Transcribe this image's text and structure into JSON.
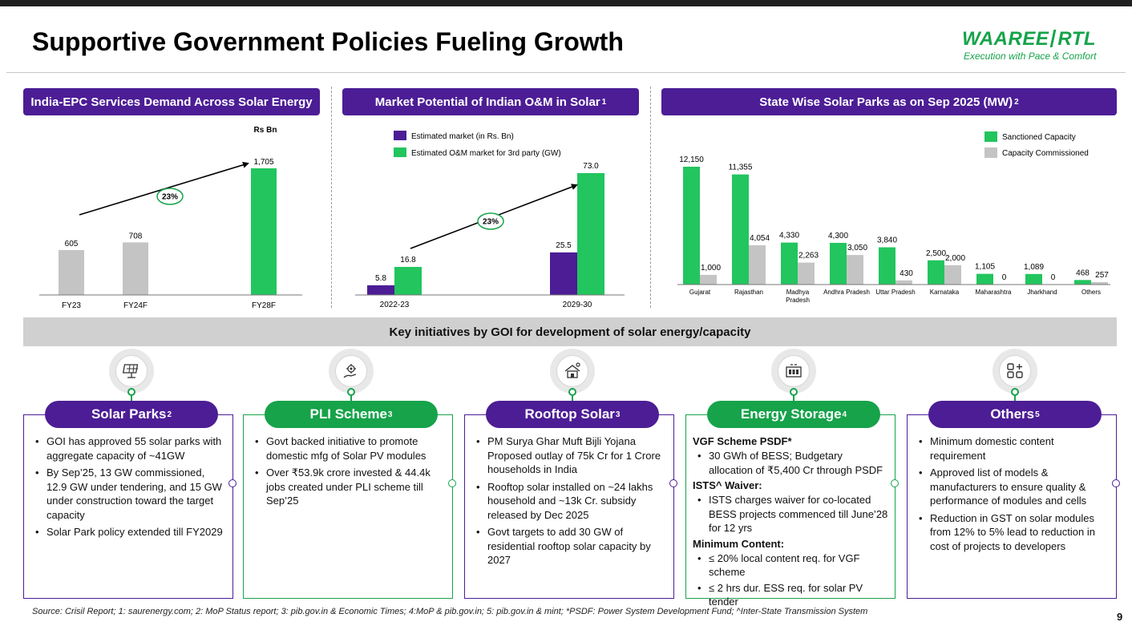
{
  "page": {
    "title": "Supportive Government Policies Fueling Growth",
    "logo_brand": "WAAREE",
    "logo_sub": "RTL",
    "logo_tagline": "Execution with Pace & Comfort",
    "page_number": "9",
    "banner": "Key initiatives by GOI for development of solar energy/capacity",
    "footer": "Source: Crisil Report; 1: saurenergy.com; 2: MoP Status report; 3: pib.gov.in & Economic Times; 4:MoP & pib.gov.in; 5: pib.gov.in & mint; *PSDF: Power System Development Fund; ^Inter-State Transmission System"
  },
  "colors": {
    "purple": "#4c1d95",
    "green": "#16a34a",
    "bar_green": "#22c55e",
    "bar_grey": "#c4c4c4"
  },
  "chart_data": [
    {
      "id": "epc",
      "type": "bar",
      "title": "India-EPC Services Demand Across Solar Energy",
      "unit_label": "Rs Bn",
      "categories": [
        "FY23",
        "FY24F",
        "FY28F"
      ],
      "values": [
        605,
        708,
        1705
      ],
      "value_labels": [
        "605",
        "708",
        "1,705"
      ],
      "bar_colors": [
        "grey",
        "grey",
        "green"
      ],
      "cagr_label": "23%",
      "ylim": [
        0,
        1705
      ]
    },
    {
      "id": "om",
      "type": "bar",
      "title": "Market Potential of Indian O&M in Solar",
      "title_sup": "1",
      "categories": [
        "2022-23",
        "2029-30"
      ],
      "series": [
        {
          "name": "Estimated market (in Rs. Bn)",
          "color": "purple",
          "values": [
            5.8,
            25.5
          ],
          "labels": [
            "5.8",
            "25.5"
          ]
        },
        {
          "name": "Estimated O&M market for 3rd party (GW)",
          "color": "green",
          "values": [
            16.8,
            73.0
          ],
          "labels": [
            "16.8",
            "73.0"
          ]
        }
      ],
      "cagr_label": "23%",
      "ylim": [
        0,
        73
      ]
    },
    {
      "id": "parks",
      "type": "bar",
      "title": "State Wise Solar Parks as on Sep 2025 (MW)",
      "title_sup": "2",
      "categories": [
        "Gujarat",
        "Rajasthan",
        "Madhya Pradesh",
        "Andhra Pradesh",
        "Uttar Pradesh",
        "Karnataka",
        "Maharashtra",
        "Jharkhand",
        "Others"
      ],
      "series": [
        {
          "name": "Sanctioned Capacity",
          "color": "green",
          "values": [
            12150,
            11355,
            4330,
            4300,
            3840,
            2500,
            1105,
            1089,
            468
          ],
          "labels": [
            "12,150",
            "11,355",
            "4,330",
            "4,300",
            "3,840",
            "2,500",
            "1,105",
            "1,089",
            "468"
          ]
        },
        {
          "name": "Capacity Commissioned",
          "color": "grey",
          "values": [
            1000,
            4054,
            2263,
            3050,
            430,
            2000,
            0,
            0,
            257
          ],
          "labels": [
            "1,000",
            "4,054",
            "2,263",
            "3,050",
            "430",
            "2,000",
            "0",
            "0",
            "257"
          ]
        }
      ],
      "ylim": [
        0,
        12150
      ]
    }
  ],
  "initiatives": [
    {
      "title": "Solar Parks",
      "sup": "2",
      "icon": "solar-panel-icon",
      "sections": [
        {
          "items": [
            "GOI has approved 55 solar parks with aggregate capacity of ~41GW",
            "By Sep’25, 13 GW commissioned, 12.9 GW under tendering, and 15 GW under construction toward the target capacity",
            "Solar Park policy extended till FY2029"
          ]
        }
      ]
    },
    {
      "title": "PLI Scheme",
      "sup": "3",
      "icon": "gear-hand-icon",
      "sections": [
        {
          "items": [
            "Govt backed initiative to promote domestic mfg of Solar PV modules",
            "Over ₹53.9k crore invested & 44.4k jobs created under PLI scheme till Sep’25"
          ]
        }
      ]
    },
    {
      "title": "Rooftop Solar",
      "sup": "3",
      "icon": "rooftop-solar-icon",
      "sections": [
        {
          "items": [
            "PM Surya Ghar Muft Bijli Yojana Proposed outlay of 75k Cr for 1 Crore households in India",
            "Rooftop solar installed on ~24 lakhs household and ~13k Cr. subsidy released by Dec 2025",
            "Govt targets to add 30 GW of residential rooftop solar capacity by 2027"
          ]
        }
      ]
    },
    {
      "title": "Energy Storage",
      "sup": "4",
      "icon": "battery-storage-icon",
      "sections": [
        {
          "heading": "VGF Scheme PSDF*",
          "items": [
            "30 GWh of BESS; Budgetary allocation of ₹5,400 Cr through PSDF"
          ]
        },
        {
          "heading": "ISTS^ Waiver:",
          "items": [
            "ISTS charges waiver for co-located BESS projects commenced till June’28 for 12 yrs"
          ]
        },
        {
          "heading": "Minimum Content:",
          "items": [
            "≤ 20% local content req. for VGF scheme",
            "≤ 2 hrs dur. ESS req. for solar PV tender"
          ]
        }
      ]
    },
    {
      "title": "Others",
      "sup": "5",
      "icon": "grid-plus-icon",
      "sections": [
        {
          "items": [
            "Minimum domestic content requirement",
            "Approved list of models & manufacturers to ensure quality & performance of modules and cells",
            "Reduction in GST on solar modules from 12% to 5% lead to reduction in cost of projects to developers"
          ]
        }
      ]
    }
  ]
}
